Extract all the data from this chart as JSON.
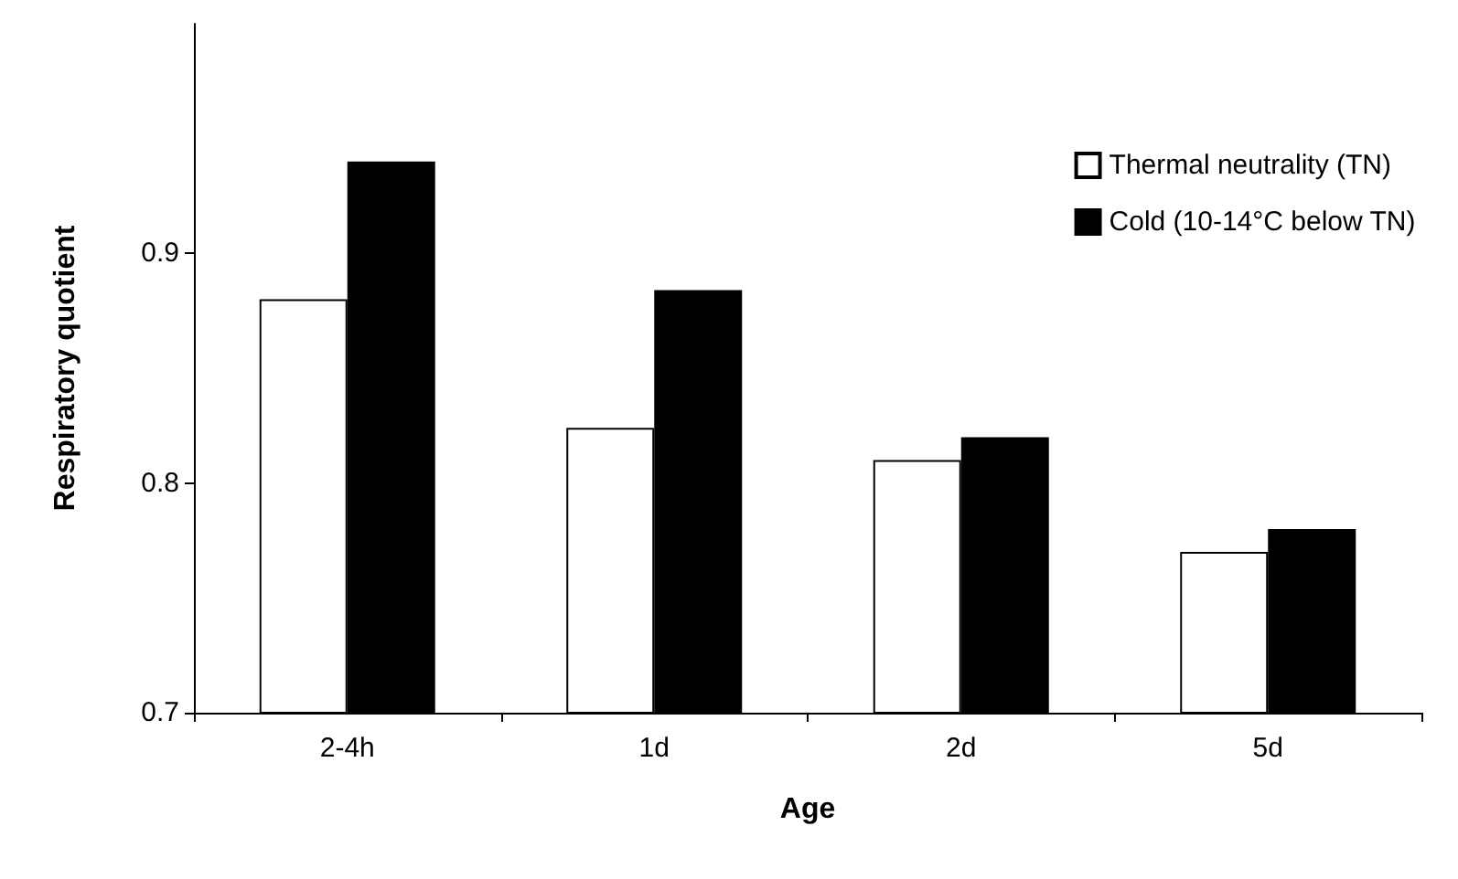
{
  "chart_data": {
    "type": "bar",
    "xlabel": "Age",
    "ylabel": "Respiratory quotient",
    "categories": [
      "2-4h",
      "1d",
      "2d",
      "5d"
    ],
    "series": [
      {
        "name": "Thermal neutrality (TN)",
        "color": "#ffffff",
        "values": [
          0.88,
          0.824,
          0.81,
          0.77
        ]
      },
      {
        "name": "Cold (10-14°C below TN)",
        "color": "#000000",
        "values": [
          0.94,
          0.884,
          0.82,
          0.78
        ]
      }
    ],
    "ylim": [
      0.7,
      1.0
    ],
    "yticks": [
      0.7,
      0.8,
      0.9
    ],
    "grid": false,
    "legend": "top right"
  }
}
